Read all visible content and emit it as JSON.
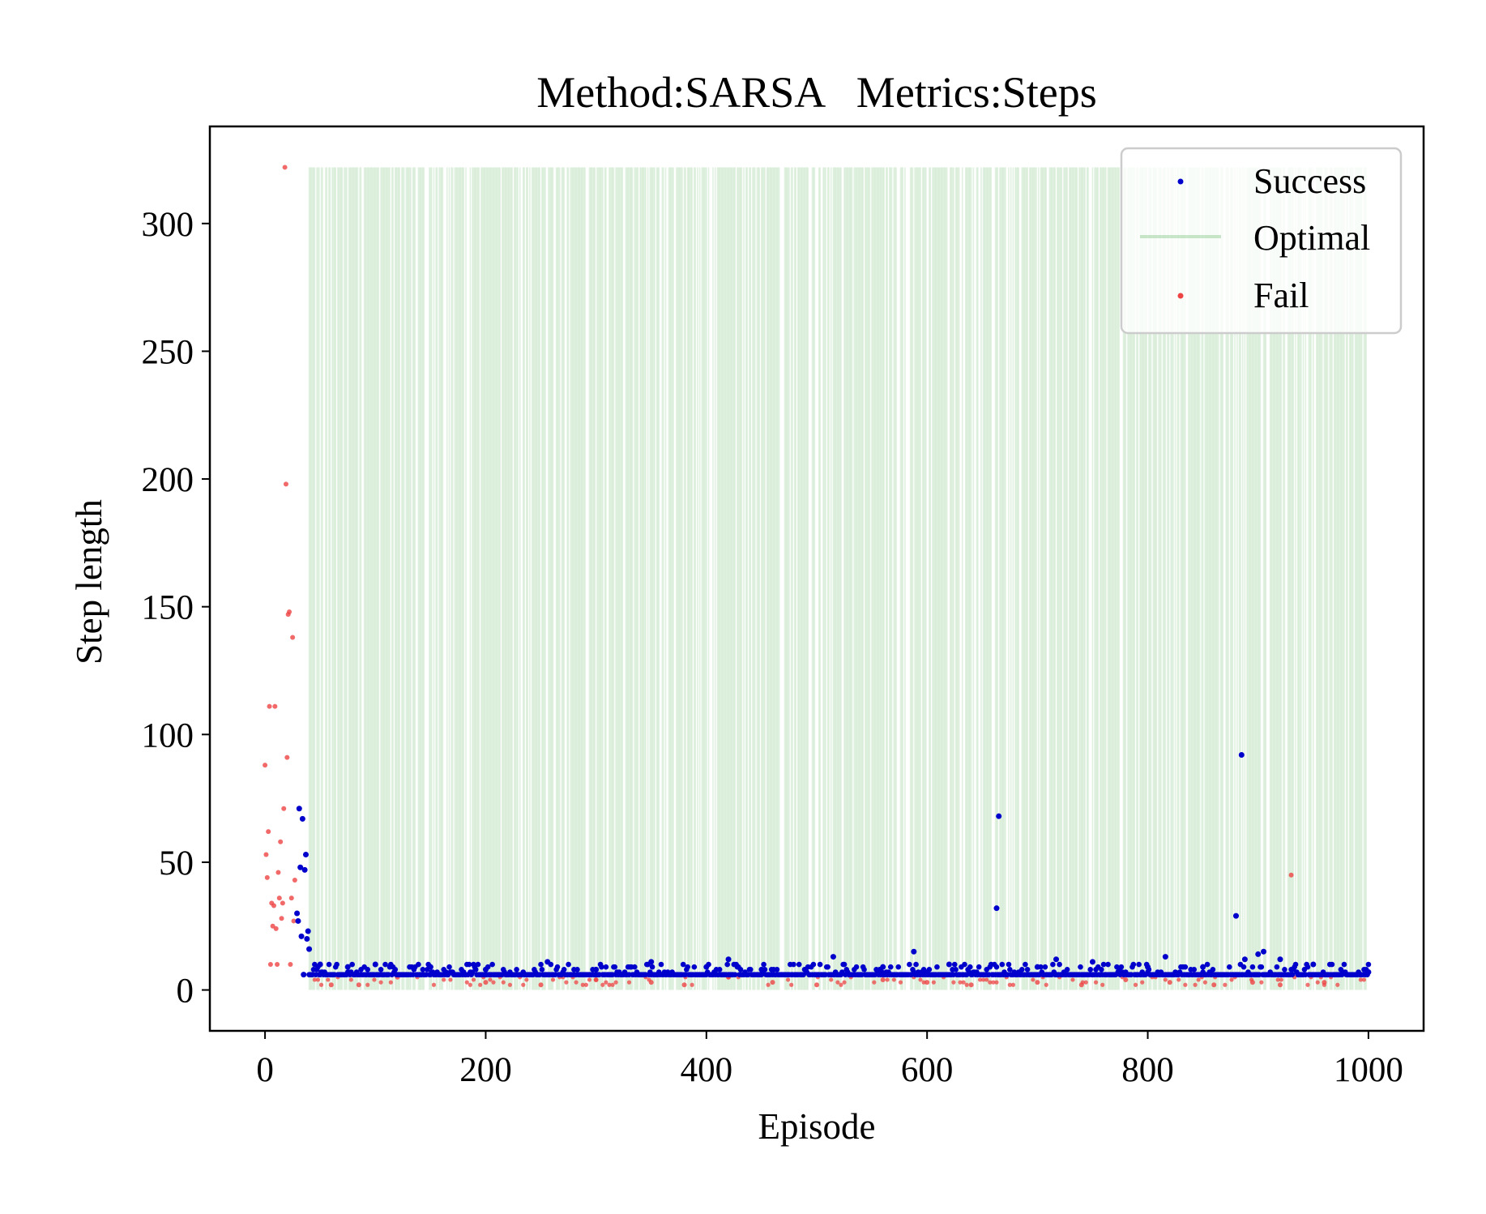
{
  "chart_data": {
    "type": "scatter",
    "title": "Method:SARSA   Metrics:Steps",
    "xlabel": "Episode",
    "ylabel": "Step length",
    "xlim": [
      -50,
      1050
    ],
    "ylim": [
      -16,
      338
    ],
    "xticks": [
      0,
      200,
      400,
      600,
      800,
      1000
    ],
    "yticks": [
      0,
      50,
      100,
      150,
      200,
      250,
      300
    ],
    "grid": false,
    "legend": {
      "position": "top-right",
      "entries": [
        {
          "label": "Success",
          "color": "#0000cc",
          "marker": "dot"
        },
        {
          "label": "Optimal",
          "color": "#2e9e2e",
          "marker": "line"
        },
        {
          "label": "Fail",
          "color": "#ee4444",
          "marker": "dot"
        }
      ]
    },
    "optimal_band": {
      "description": "vertical lines at episodes where optimal path was found",
      "x_range": [
        33,
        1000
      ],
      "y_top": 322,
      "y_bottom": 0
    },
    "series": [
      {
        "name": "Fail",
        "color": "#ee4444",
        "points": [
          [
            0,
            88
          ],
          [
            1,
            53
          ],
          [
            2,
            44
          ],
          [
            3,
            62
          ],
          [
            4,
            111
          ],
          [
            5,
            10
          ],
          [
            6,
            34
          ],
          [
            7,
            25
          ],
          [
            8,
            33
          ],
          [
            9,
            111
          ],
          [
            10,
            24
          ],
          [
            11,
            10
          ],
          [
            12,
            46
          ],
          [
            13,
            36
          ],
          [
            14,
            58
          ],
          [
            15,
            28
          ],
          [
            16,
            34
          ],
          [
            17,
            71
          ],
          [
            18,
            322
          ],
          [
            19,
            198
          ],
          [
            20,
            91
          ],
          [
            21,
            147
          ],
          [
            22,
            148
          ],
          [
            23,
            10
          ],
          [
            24,
            36
          ],
          [
            25,
            138
          ],
          [
            26,
            27
          ],
          [
            27,
            43
          ],
          [
            60,
            2
          ],
          [
            85,
            2
          ],
          [
            120,
            5
          ],
          [
            200,
            3
          ],
          [
            250,
            2
          ],
          [
            300,
            4
          ],
          [
            350,
            3
          ],
          [
            380,
            2
          ],
          [
            420,
            5
          ],
          [
            460,
            3
          ],
          [
            500,
            2
          ],
          [
            560,
            4
          ],
          [
            600,
            3
          ],
          [
            640,
            2
          ],
          [
            700,
            3
          ],
          [
            740,
            2
          ],
          [
            780,
            4
          ],
          [
            820,
            3
          ],
          [
            860,
            2
          ],
          [
            895,
            3
          ],
          [
            920,
            2
          ],
          [
            930,
            45
          ],
          [
            960,
            3
          ]
        ]
      },
      {
        "name": "Success",
        "color": "#0000cc",
        "points": [
          [
            29,
            30
          ],
          [
            30,
            27
          ],
          [
            31,
            71
          ],
          [
            32,
            48
          ],
          [
            33,
            21
          ],
          [
            34,
            67
          ],
          [
            35,
            6
          ],
          [
            36,
            47
          ],
          [
            37,
            53
          ],
          [
            38,
            20
          ],
          [
            39,
            23
          ],
          [
            40,
            16
          ],
          [
            50,
            10
          ],
          [
            75,
            9
          ],
          [
            100,
            10
          ],
          [
            150,
            9
          ],
          [
            200,
            8
          ],
          [
            256,
            11
          ],
          [
            300,
            8
          ],
          [
            350,
            11
          ],
          [
            400,
            9
          ],
          [
            420,
            12
          ],
          [
            450,
            8
          ],
          [
            515,
            13
          ],
          [
            560,
            9
          ],
          [
            588,
            15
          ],
          [
            620,
            10
          ],
          [
            663,
            32
          ],
          [
            665,
            68
          ],
          [
            700,
            9
          ],
          [
            717,
            12
          ],
          [
            750,
            11
          ],
          [
            800,
            9
          ],
          [
            816,
            13
          ],
          [
            850,
            9
          ],
          [
            880,
            29
          ],
          [
            885,
            92
          ],
          [
            888,
            12
          ],
          [
            900,
            14
          ],
          [
            905,
            15
          ],
          [
            920,
            12
          ],
          [
            950,
            10
          ],
          [
            1000,
            7
          ]
        ]
      }
    ],
    "baseline_success": {
      "name": "Success",
      "y": 6,
      "x_range": [
        40,
        1000
      ]
    }
  }
}
